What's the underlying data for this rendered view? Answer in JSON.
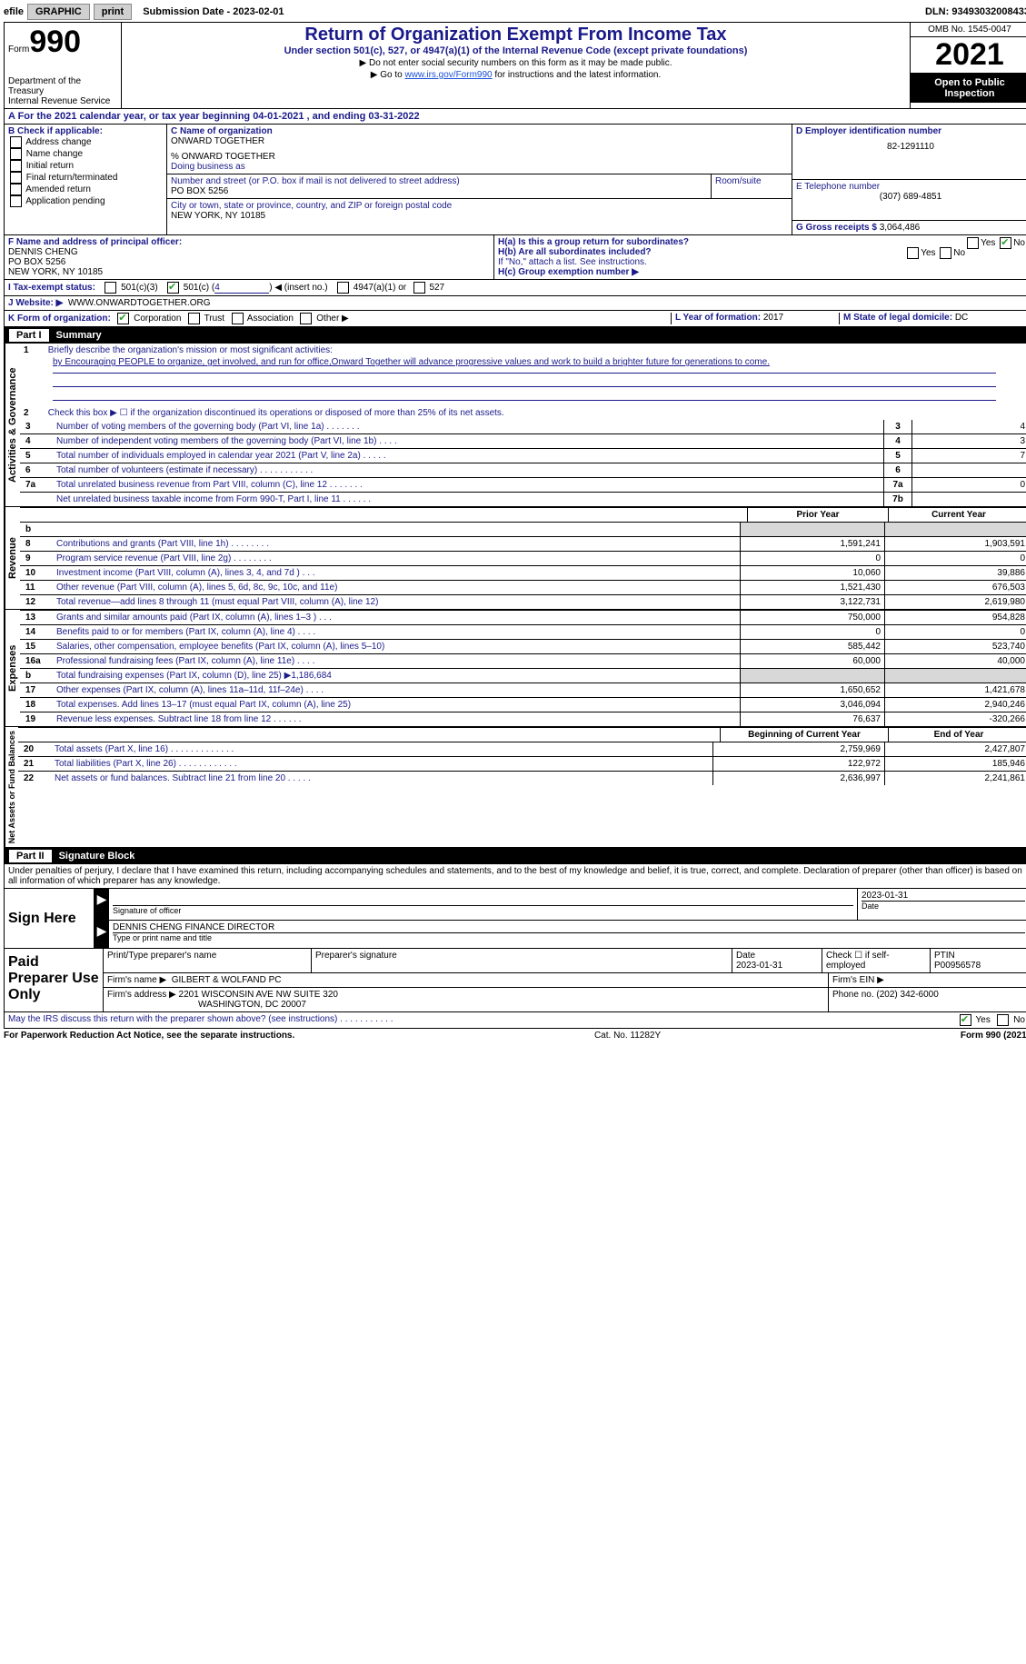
{
  "topbar": {
    "efile_prefix": "efile",
    "graphic_btn": "GRAPHIC",
    "print_btn": "print",
    "submission_label": "Submission Date - 2023-02-01",
    "dln": "DLN: 93493032008433"
  },
  "header": {
    "form_word": "Form",
    "form_num": "990",
    "dept": "Department of the Treasury",
    "irs": "Internal Revenue Service",
    "title": "Return of Organization Exempt From Income Tax",
    "subtitle": "Under section 501(c), 527, or 4947(a)(1) of the Internal Revenue Code (except private foundations)",
    "line1": "▶ Do not enter social security numbers on this form as it may be made public.",
    "line2_pre": "▶ Go to ",
    "line2_link": "www.irs.gov/Form990",
    "line2_post": " for instructions and the latest information.",
    "omb": "OMB No. 1545-0047",
    "year": "2021",
    "open": "Open to Public Inspection"
  },
  "sectionA": "A  For the 2021 calendar year, or tax year beginning 04-01-2021   , and ending 03-31-2022",
  "colB": {
    "label": "B Check if applicable:",
    "opts": [
      "Address change",
      "Name change",
      "Initial return",
      "Final return/terminated",
      "Amended return",
      "Application pending"
    ]
  },
  "colC": {
    "name_label": "C Name of organization",
    "name": "ONWARD TOGETHER",
    "care_of": "% ONWARD TOGETHER",
    "dba_label": "Doing business as",
    "addr_label": "Number and street (or P.O. box if mail is not delivered to street address)",
    "room_label": "Room/suite",
    "addr": "PO BOX 5256",
    "city_label": "City or town, state or province, country, and ZIP or foreign postal code",
    "city": "NEW YORK, NY  10185"
  },
  "colD": {
    "ein_label": "D Employer identification number",
    "ein": "82-1291110",
    "phone_label": "E Telephone number",
    "phone": "(307) 689-4851",
    "gross_label": "G Gross receipts $",
    "gross": "3,064,486"
  },
  "rowF": {
    "label": "F  Name and address of principal officer:",
    "name": "DENNIS CHENG",
    "addr1": "PO BOX 5256",
    "addr2": "NEW YORK, NY  10185"
  },
  "rowH": {
    "ha": "H(a)  Is this a group return for subordinates?",
    "hb": "H(b)  Are all subordinates included?",
    "hb_note": "If \"No,\" attach a list. See instructions.",
    "hc": "H(c)  Group exemption number ▶",
    "yes": "Yes",
    "no": "No"
  },
  "rowI": {
    "label": "I   Tax-exempt status:",
    "c3": "501(c)(3)",
    "c_pre": "501(c) (",
    "c_num": "4",
    "c_post": ") ◀ (insert no.)",
    "a1": "4947(a)(1) or",
    "s527": "527"
  },
  "rowJ": {
    "label": "J   Website: ▶",
    "url": "WWW.ONWARDTOGETHER.ORG"
  },
  "rowK": {
    "label": "K Form of organization:",
    "corp": "Corporation",
    "trust": "Trust",
    "assoc": "Association",
    "other": "Other ▶"
  },
  "rowL": {
    "label": "L Year of formation:",
    "val": "2017"
  },
  "rowM": {
    "label": "M State of legal domicile:",
    "val": "DC"
  },
  "part1": {
    "label": "Part I",
    "title": "Summary"
  },
  "summary": {
    "tab_activities": "Activities & Governance",
    "tab_revenue": "Revenue",
    "tab_expenses": "Expenses",
    "tab_net": "Net Assets or Fund Balances",
    "l1_label": "Briefly describe the organization's mission or most significant activities:",
    "l1_text": "by Encouraging PEOPLE to organize, get involved, and run for office,Onward Together will advance progressive values and work to build a brighter future for generations to come.",
    "l2": "Check this box ▶ ☐  if the organization discontinued its operations or disposed of more than 25% of its net assets.",
    "lines_box": [
      {
        "n": "3",
        "d": "Number of voting members of the governing body (Part VI, line 1a)   .    .    .    .    .    .    .",
        "bn": "3",
        "v": "4"
      },
      {
        "n": "4",
        "d": "Number of independent voting members of the governing body (Part VI, line 1b)   .    .    .    .",
        "bn": "4",
        "v": "3"
      },
      {
        "n": "5",
        "d": "Total number of individuals employed in calendar year 2021 (Part V, line 2a)   .    .    .    .    .",
        "bn": "5",
        "v": "7"
      },
      {
        "n": "6",
        "d": "Total number of volunteers (estimate if necessary)   .    .    .    .    .    .    .    .    .    .    .",
        "bn": "6",
        "v": ""
      },
      {
        "n": "7a",
        "d": "Total unrelated business revenue from Part VIII, column (C), line 12   .    .    .    .    .    .    .",
        "bn": "7a",
        "v": "0"
      },
      {
        "n": "",
        "d": "Net unrelated business taxable income from Form 990-T, Part I, line 11   .    .    .    .    .    .",
        "bn": "7b",
        "v": ""
      }
    ],
    "prior_hdr": "Prior Year",
    "curr_hdr": "Current Year",
    "rev_lines": [
      {
        "n": "b",
        "d": "",
        "c1": "",
        "c2": "",
        "grey": true
      },
      {
        "n": "8",
        "d": "Contributions and grants (Part VIII, line 1h)   .    .    .    .    .    .    .    .",
        "c1": "1,591,241",
        "c2": "1,903,591"
      },
      {
        "n": "9",
        "d": "Program service revenue (Part VIII, line 2g)   .    .    .    .    .    .    .    .",
        "c1": "0",
        "c2": "0"
      },
      {
        "n": "10",
        "d": "Investment income (Part VIII, column (A), lines 3, 4, and 7d )   .    .    .",
        "c1": "10,060",
        "c2": "39,886"
      },
      {
        "n": "11",
        "d": "Other revenue (Part VIII, column (A), lines 5, 6d, 8c, 9c, 10c, and 11e)",
        "c1": "1,521,430",
        "c2": "676,503"
      },
      {
        "n": "12",
        "d": "Total revenue—add lines 8 through 11 (must equal Part VIII, column (A), line 12)",
        "c1": "3,122,731",
        "c2": "2,619,980"
      }
    ],
    "exp_lines": [
      {
        "n": "13",
        "d": "Grants and similar amounts paid (Part IX, column (A), lines 1–3 )   .    .    .",
        "c1": "750,000",
        "c2": "954,828"
      },
      {
        "n": "14",
        "d": "Benefits paid to or for members (Part IX, column (A), line 4)   .    .    .    .",
        "c1": "0",
        "c2": "0"
      },
      {
        "n": "15",
        "d": "Salaries, other compensation, employee benefits (Part IX, column (A), lines 5–10)",
        "c1": "585,442",
        "c2": "523,740"
      },
      {
        "n": "16a",
        "d": "Professional fundraising fees (Part IX, column (A), line 11e)   .    .    .    .",
        "c1": "60,000",
        "c2": "40,000"
      },
      {
        "n": "b",
        "d": "Total fundraising expenses (Part IX, column (D), line 25) ▶1,186,684",
        "c1": "",
        "c2": "",
        "grey": true
      },
      {
        "n": "17",
        "d": "Other expenses (Part IX, column (A), lines 11a–11d, 11f–24e)   .    .    .    .",
        "c1": "1,650,652",
        "c2": "1,421,678"
      },
      {
        "n": "18",
        "d": "Total expenses. Add lines 13–17 (must equal Part IX, column (A), line 25)",
        "c1": "3,046,094",
        "c2": "2,940,246"
      },
      {
        "n": "19",
        "d": "Revenue less expenses. Subtract line 18 from line 12   .    .    .    .    .    .",
        "c1": "76,637",
        "c2": "-320,266"
      }
    ],
    "net_hdr1": "Beginning of Current Year",
    "net_hdr2": "End of Year",
    "net_lines": [
      {
        "n": "20",
        "d": "Total assets (Part X, line 16)   .    .    .    .    .    .    .    .    .    .    .    .    .",
        "c1": "2,759,969",
        "c2": "2,427,807"
      },
      {
        "n": "21",
        "d": "Total liabilities (Part X, line 26)   .    .    .    .    .    .    .    .    .    .    .    .",
        "c1": "122,972",
        "c2": "185,946"
      },
      {
        "n": "22",
        "d": "Net assets or fund balances. Subtract line 21 from line 20   .    .    .    .    .",
        "c1": "2,636,997",
        "c2": "2,241,861"
      }
    ]
  },
  "part2": {
    "label": "Part II",
    "title": "Signature Block"
  },
  "sig": {
    "decl": "Under penalties of perjury, I declare that I have examined this return, including accompanying schedules and statements, and to the best of my knowledge and belief, it is true, correct, and complete. Declaration of preparer (other than officer) is based on all information of which preparer has any knowledge.",
    "sign_here": "Sign Here",
    "sig_officer_label": "Signature of officer",
    "sig_date": "2023-01-31",
    "date_label": "Date",
    "name_title": "DENNIS CHENG  FINANCE DIRECTOR",
    "name_title_label": "Type or print name and title"
  },
  "prep": {
    "label": "Paid Preparer Use Only",
    "print_name_label": "Print/Type preparer's name",
    "sig_label": "Preparer's signature",
    "date_label": "Date",
    "date": "2023-01-31",
    "check_label": "Check ☐ if self-employed",
    "ptin_label": "PTIN",
    "ptin": "P00956578",
    "firm_name_label": "Firm's name   ▶",
    "firm_name": "GILBERT & WOLFAND PC",
    "firm_ein_label": "Firm's EIN ▶",
    "firm_addr_label": "Firm's address ▶",
    "firm_addr1": "2201 WISCONSIN AVE NW SUITE 320",
    "firm_addr2": "WASHINGTON, DC  20007",
    "phone_label": "Phone no.",
    "phone": "(202) 342-6000"
  },
  "discuss": {
    "text": "May the IRS discuss this return with the preparer shown above? (see instructions)   .    .    .    .    .    .    .    .    .    .    .",
    "yes": "Yes",
    "no": "No"
  },
  "footer": {
    "left": "For Paperwork Reduction Act Notice, see the separate instructions.",
    "mid": "Cat. No. 11282Y",
    "right": "Form 990 (2021)"
  }
}
